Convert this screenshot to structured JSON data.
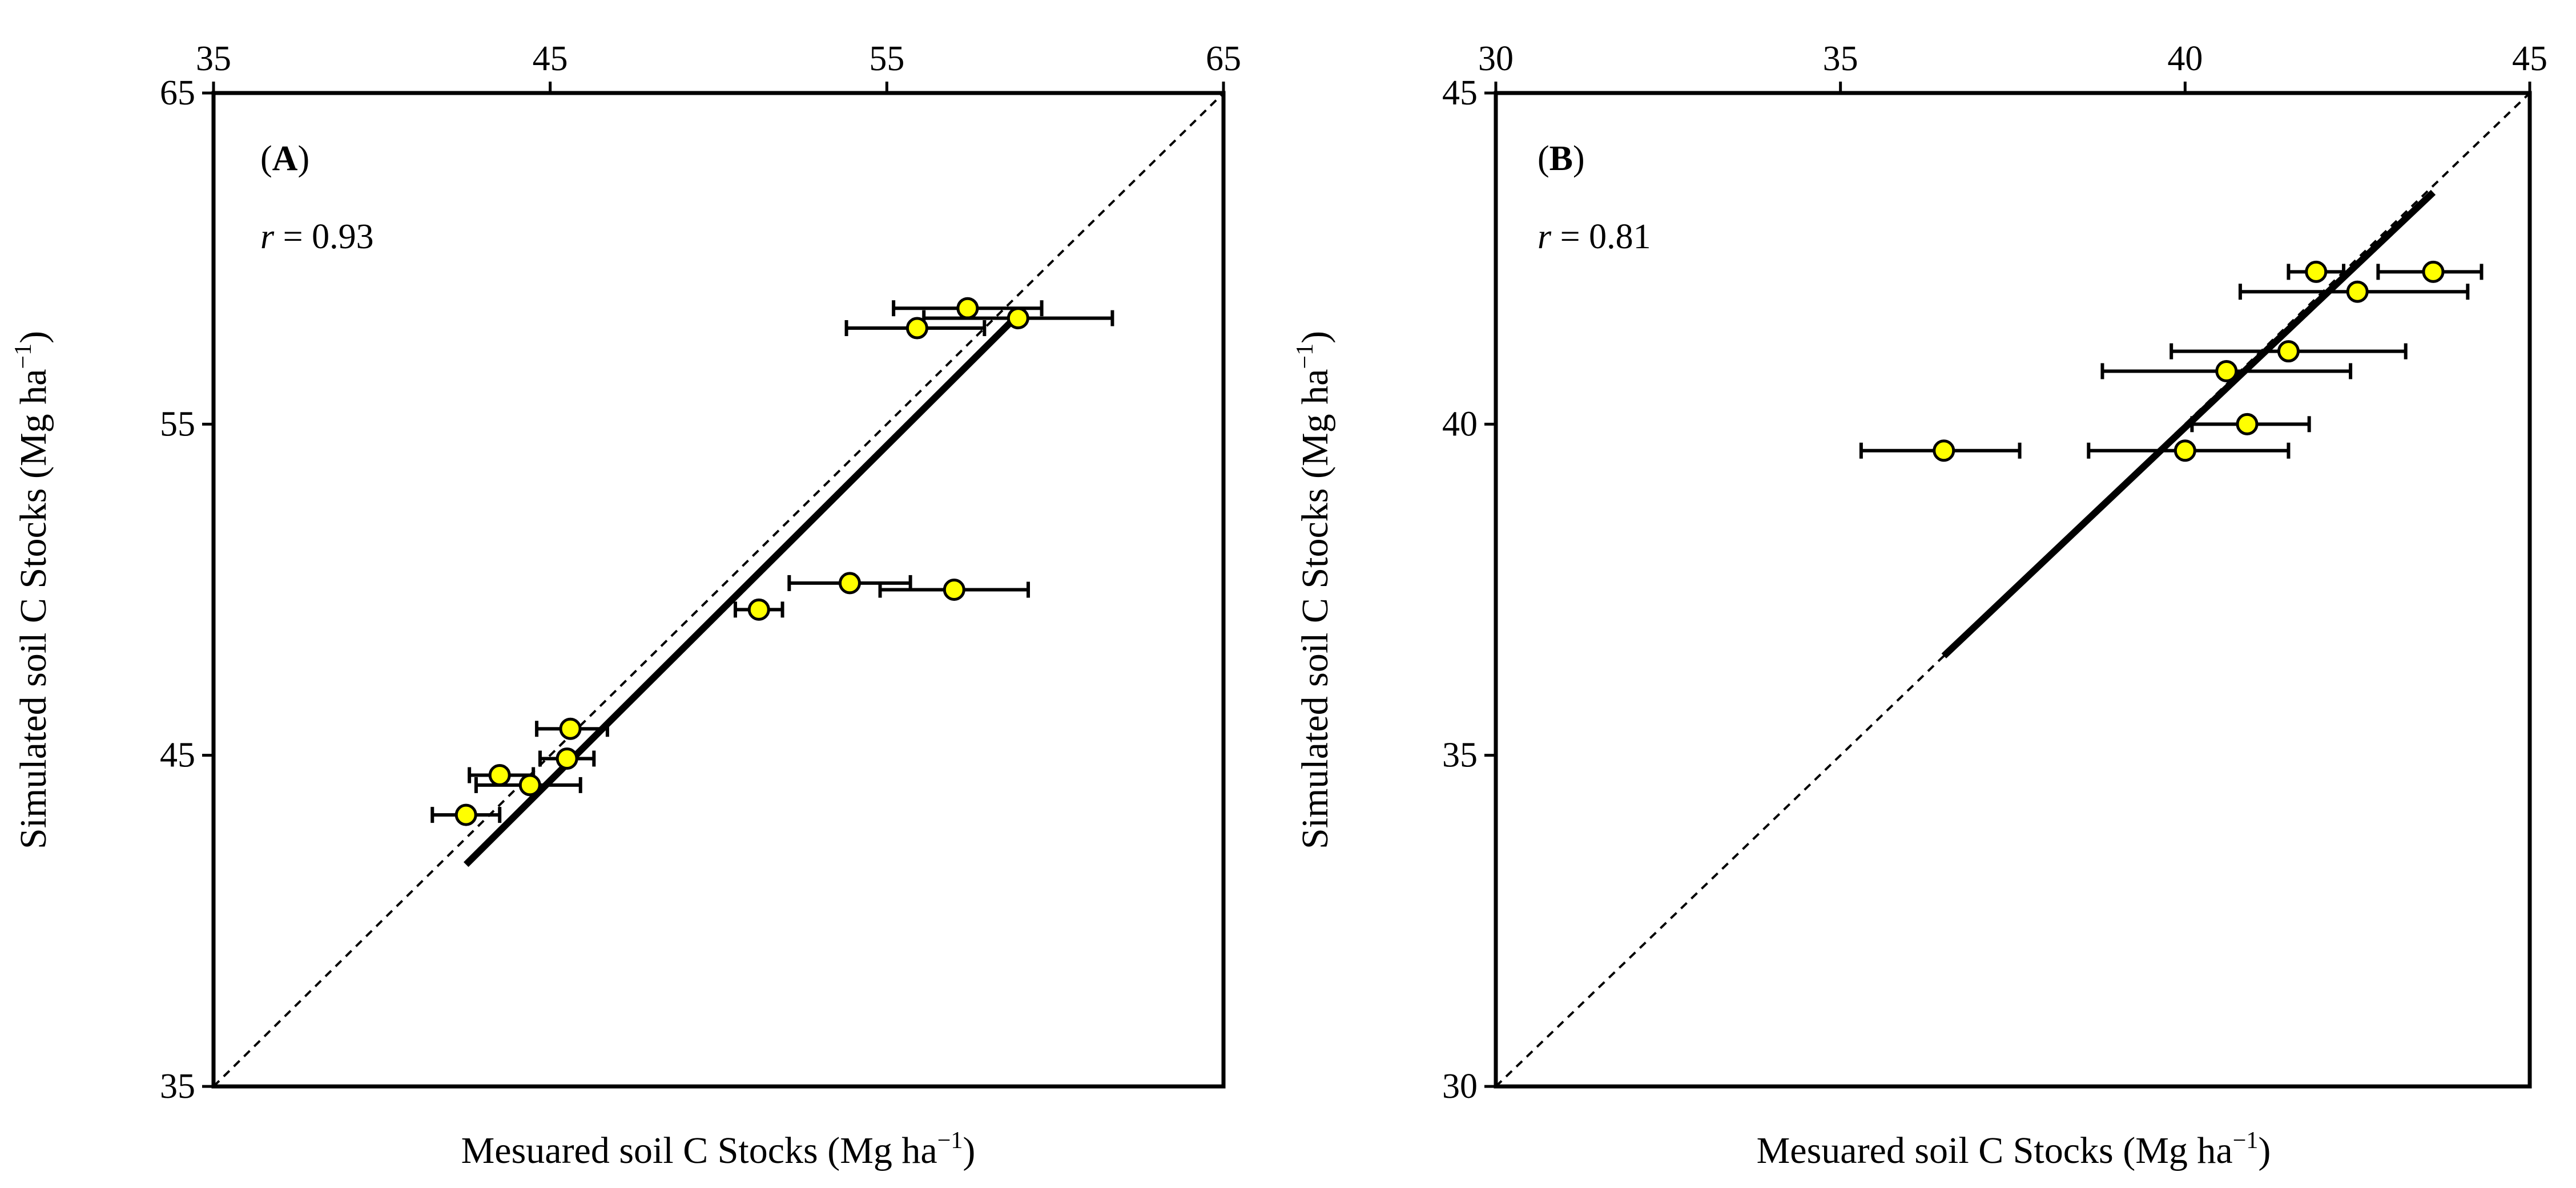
{
  "chart_data": [
    {
      "type": "scatter",
      "panel_label": "A",
      "r_symbol": "r",
      "r_rest": " = 0.93",
      "xlabel_main": "Mesuared soil C Stocks (Mg ha",
      "ylabel_main": "Simulated soil C Stocks (Mg ha",
      "unit_sup": "−1",
      "unit_close": ")",
      "xlim": [
        35,
        65
      ],
      "ylim": [
        35,
        65
      ],
      "x_ticks": [
        "35",
        "45",
        "55",
        "65"
      ],
      "y_ticks": [
        "35",
        "45",
        "55",
        "65"
      ],
      "tick_values": [
        35,
        45,
        55,
        65
      ],
      "one_to_one_line": [
        [
          35,
          35
        ],
        [
          65,
          65
        ]
      ],
      "fit_line": [
        [
          42.5,
          41.7
        ],
        [
          58.8,
          58.2
        ]
      ],
      "points": [
        {
          "x": 57.4,
          "y": 58.5,
          "xerr_low": 55.2,
          "xerr_high": 59.6
        },
        {
          "x": 58.9,
          "y": 58.2,
          "xerr_low": 56.1,
          "xerr_high": 61.7
        },
        {
          "x": 55.9,
          "y": 57.9,
          "xerr_low": 53.8,
          "xerr_high": 57.9
        },
        {
          "x": 53.9,
          "y": 50.2,
          "xerr_low": 52.1,
          "xerr_high": 55.7
        },
        {
          "x": 57.0,
          "y": 50.0,
          "xerr_low": 54.8,
          "xerr_high": 59.2
        },
        {
          "x": 51.2,
          "y": 49.4,
          "xerr_low": 50.5,
          "xerr_high": 51.9
        },
        {
          "x": 45.6,
          "y": 45.8,
          "xerr_low": 44.6,
          "xerr_high": 46.7
        },
        {
          "x": 45.5,
          "y": 44.9,
          "xerr_low": 44.7,
          "xerr_high": 46.3
        },
        {
          "x": 43.5,
          "y": 44.4,
          "xerr_low": 42.6,
          "xerr_high": 44.5
        },
        {
          "x": 44.4,
          "y": 44.1,
          "xerr_low": 42.8,
          "xerr_high": 45.9
        },
        {
          "x": 42.5,
          "y": 43.2,
          "xerr_low": 41.5,
          "xerr_high": 43.5
        }
      ]
    },
    {
      "type": "scatter",
      "panel_label": "B",
      "r_symbol": "r",
      "r_rest": " = 0.81",
      "xlabel_main": "Mesuared soil C Stocks (Mg ha",
      "ylabel_main": "Simulated soil C Stocks (Mg ha",
      "unit_sup": "−1",
      "unit_close": ")",
      "xlim": [
        30,
        45
      ],
      "ylim": [
        30,
        45
      ],
      "x_ticks": [
        "30",
        "35",
        "40",
        "45"
      ],
      "y_ticks": [
        "30",
        "35",
        "40",
        "45"
      ],
      "tick_values": [
        30,
        35,
        40,
        45
      ],
      "one_to_one_line": [
        [
          30,
          30
        ],
        [
          45,
          45
        ]
      ],
      "fit_line": [
        [
          36.5,
          36.5
        ],
        [
          43.6,
          43.5
        ]
      ],
      "points": [
        {
          "x": 41.9,
          "y": 42.3,
          "xerr_low": 41.5,
          "xerr_high": 42.3
        },
        {
          "x": 43.6,
          "y": 42.3,
          "xerr_low": 42.8,
          "xerr_high": 44.3
        },
        {
          "x": 42.5,
          "y": 42.0,
          "xerr_low": 40.8,
          "xerr_high": 44.1
        },
        {
          "x": 41.5,
          "y": 41.1,
          "xerr_low": 39.8,
          "xerr_high": 43.2
        },
        {
          "x": 40.6,
          "y": 40.8,
          "xerr_low": 38.8,
          "xerr_high": 42.4
        },
        {
          "x": 40.9,
          "y": 40.0,
          "xerr_low": 40.1,
          "xerr_high": 41.8
        },
        {
          "x": 36.5,
          "y": 39.6,
          "xerr_low": 35.3,
          "xerr_high": 37.6
        },
        {
          "x": 40.0,
          "y": 39.6,
          "xerr_low": 38.6,
          "xerr_high": 41.5
        }
      ]
    }
  ]
}
